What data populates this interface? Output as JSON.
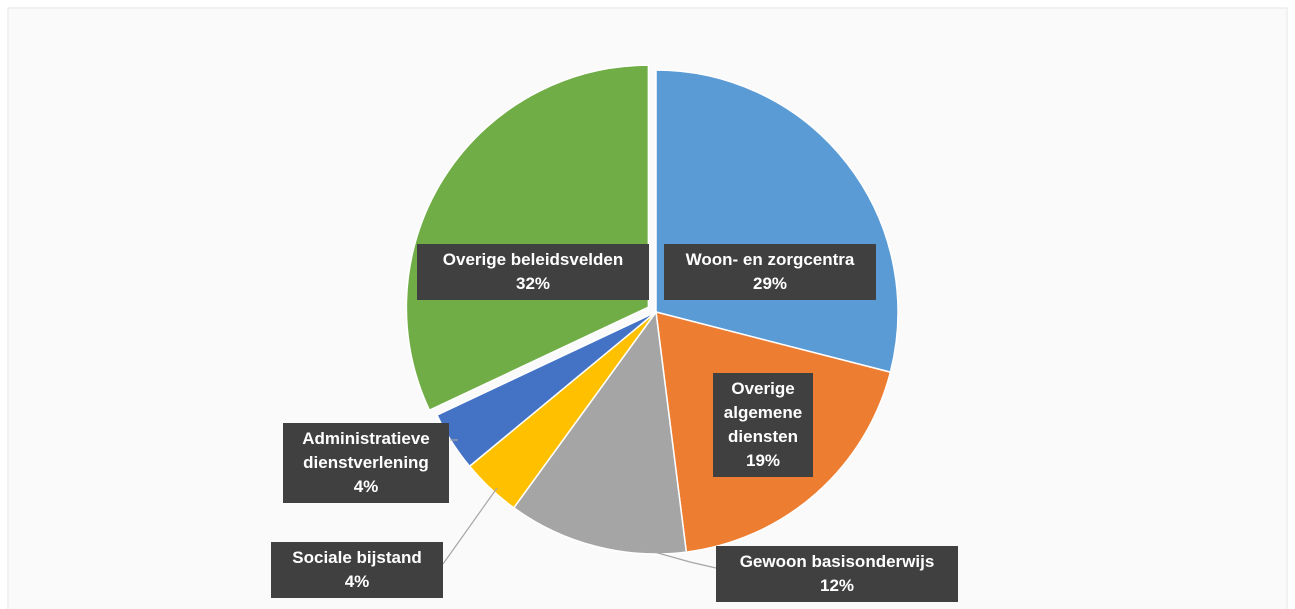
{
  "chart_data": {
    "type": "pie",
    "categories": [
      "Woon- en zorgcentra",
      "Overige algemene diensten",
      "Gewoon basisonderwijs",
      "Sociale bijstand",
      "Administratieve dienstverlening",
      "Overige beleidsvelden"
    ],
    "values": [
      29,
      19,
      12,
      4,
      4,
      32
    ],
    "value_labels": [
      "29%",
      "19%",
      "12%",
      "4%",
      "4%",
      "32%"
    ],
    "colors": [
      "#5b9bd5",
      "#ed7d31",
      "#a5a5a5",
      "#ffc000",
      "#4472c4",
      "#70ad47"
    ]
  }
}
